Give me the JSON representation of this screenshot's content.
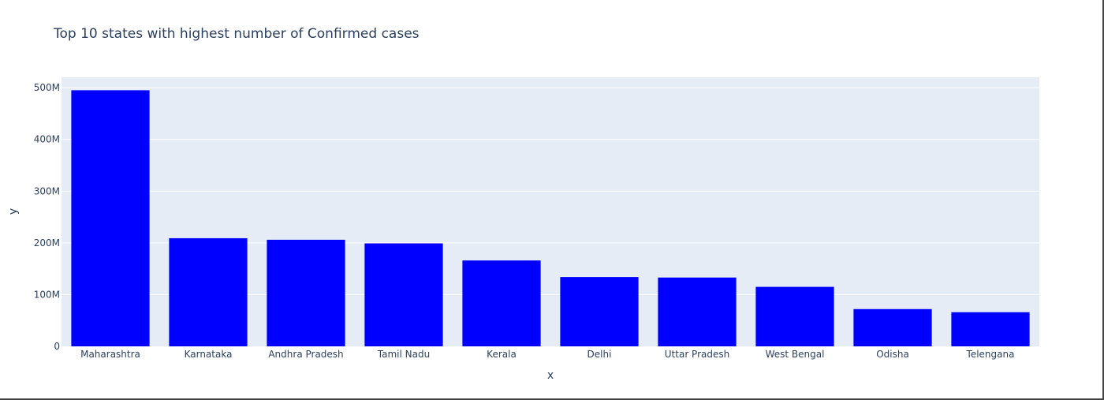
{
  "chart_data": {
    "type": "bar",
    "title": "Top 10 states with highest number of Confirmed cases",
    "xlabel": "x",
    "ylabel": "y",
    "categories": [
      "Maharashtra",
      "Karnataka",
      "Andhra Pradesh",
      "Tamil Nadu",
      "Kerala",
      "Delhi",
      "Uttar Pradesh",
      "West Bengal",
      "Odisha",
      "Telengana"
    ],
    "values": [
      495000000,
      209000000,
      206000000,
      199000000,
      166000000,
      134000000,
      133000000,
      115000000,
      72000000,
      66000000
    ],
    "ylim": [
      0,
      520000000
    ],
    "yticks": [
      0,
      100000000,
      200000000,
      300000000,
      400000000,
      500000000
    ],
    "ytick_labels": [
      "0",
      "100M",
      "200M",
      "300M",
      "400M",
      "500M"
    ],
    "grid": true,
    "legend": "none",
    "colors": {
      "bar": "#0000ff",
      "plot_bg": "#e5ecf6",
      "grid": "#ffffff",
      "text": "#2a3f5f"
    }
  }
}
